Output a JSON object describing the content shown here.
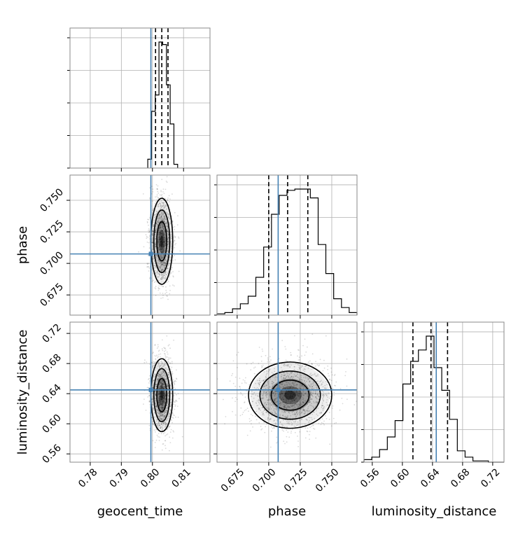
{
  "chart_data": {
    "type": "corner",
    "parameters": [
      "geocent_time",
      "phase",
      "luminosity_distance"
    ],
    "axis_labels": [
      "geocent_time",
      "phase",
      "luminosity_distance"
    ],
    "ranges": {
      "geocent_time": [
        0.7735,
        0.8185
      ],
      "phase": [
        0.659,
        0.77
      ],
      "luminosity_distance": [
        0.549,
        0.735
      ]
    },
    "ticks": {
      "geocent_time": [
        0.78,
        0.79,
        0.8,
        0.81
      ],
      "phase": [
        0.675,
        0.7,
        0.725,
        0.75
      ],
      "luminosity_distance": [
        0.56,
        0.6,
        0.64,
        0.68,
        0.72
      ]
    },
    "tick_labels": {
      "geocent_time": [
        "0.78",
        "0.79",
        "0.80",
        "0.81"
      ],
      "phase": [
        "0.675",
        "0.700",
        "0.725",
        "0.750"
      ],
      "luminosity_distance": [
        "0.56",
        "0.60",
        "0.64",
        "0.68",
        "0.72"
      ]
    },
    "truths": {
      "geocent_time": 0.7995,
      "phase": 0.7075,
      "luminosity_distance": 0.645
    },
    "quantiles": {
      "geocent_time": [
        0.801,
        0.803,
        0.805
      ],
      "phase": [
        0.7,
        0.715,
        0.731
      ],
      "luminosity_distance": [
        0.614,
        0.638,
        0.66
      ]
    },
    "histograms": {
      "geocent_time": {
        "edges": [
          0.7985,
          0.7997,
          0.8009,
          0.8021,
          0.8033,
          0.8045,
          0.8057,
          0.8069,
          0.8081
        ],
        "counts": [
          0.07,
          0.45,
          0.58,
          1.0,
          0.98,
          0.66,
          0.35,
          0.03
        ]
      },
      "phase": {
        "edges": [
          0.659,
          0.6652,
          0.6713,
          0.6775,
          0.6837,
          0.6898,
          0.696,
          0.7022,
          0.7083,
          0.7145,
          0.7207,
          0.7268,
          0.733,
          0.7392,
          0.7453,
          0.7515,
          0.7577,
          0.7638,
          0.77
        ],
        "counts": [
          0.01,
          0.02,
          0.05,
          0.09,
          0.15,
          0.3,
          0.54,
          0.8,
          0.95,
          0.99,
          1.0,
          1.0,
          0.93,
          0.56,
          0.33,
          0.13,
          0.06,
          0.02
        ]
      },
      "luminosity_distance": {
        "edges": [
          0.549,
          0.5593,
          0.5697,
          0.58,
          0.5903,
          0.6007,
          0.611,
          0.6213,
          0.6317,
          0.642,
          0.6523,
          0.6627,
          0.673,
          0.6833,
          0.6937,
          0.704,
          0.7143,
          0.7247,
          0.735
        ],
        "counts": [
          0.02,
          0.04,
          0.1,
          0.2,
          0.33,
          0.62,
          0.8,
          0.89,
          1.0,
          0.75,
          0.57,
          0.34,
          0.09,
          0.04,
          0.01,
          0.01,
          0.0,
          0.0
        ]
      }
    },
    "pair_panels": [
      {
        "x": "geocent_time",
        "y": "phase",
        "center": [
          0.803,
          0.7175
        ],
        "spread": [
          0.0016,
          0.0155
        ]
      },
      {
        "x": "geocent_time",
        "y": "luminosity_distance",
        "center": [
          0.803,
          0.638
        ],
        "spread": [
          0.0016,
          0.022
        ]
      },
      {
        "x": "phase",
        "y": "luminosity_distance",
        "center": [
          0.717,
          0.638
        ],
        "spread": [
          0.015,
          0.02
        ]
      }
    ],
    "grid": true,
    "colors": {
      "truth": "#4682b4",
      "hist": "#000000",
      "quantile": "#000000",
      "grid": "#b0b0b0",
      "points": "#000000"
    }
  }
}
